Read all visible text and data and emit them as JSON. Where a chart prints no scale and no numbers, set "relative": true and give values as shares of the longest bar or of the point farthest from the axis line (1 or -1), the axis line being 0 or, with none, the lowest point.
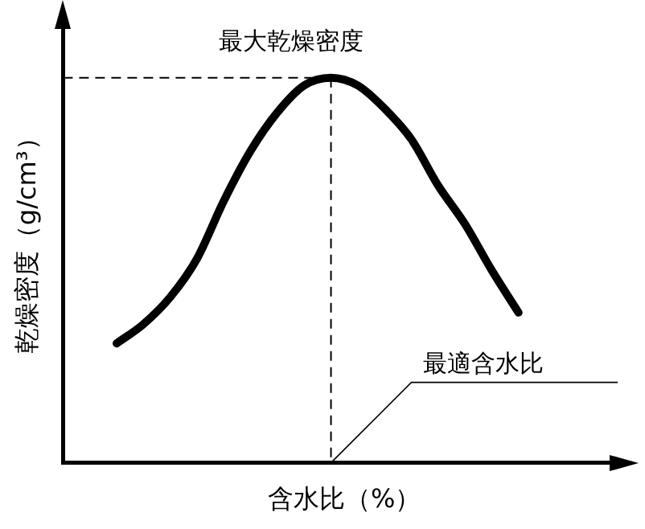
{
  "chart_data": {
    "type": "line",
    "relative": true,
    "xlabel": "含水比（%）",
    "ylabel": "乾燥密度（g/cm³）",
    "categories": [
      null,
      null,
      null,
      null,
      null,
      null,
      null,
      null,
      null,
      null,
      null,
      null,
      null,
      null,
      null,
      null,
      null,
      null,
      null,
      null,
      null,
      null
    ],
    "series": [
      {
        "color": "#000000",
        "values": [
          null,
          null,
          0.31,
          0.36,
          0.43,
          0.53,
          0.68,
          0.81,
          0.91,
          0.98,
          1,
          0.98,
          0.92,
          0.84,
          0.72,
          0.62,
          0.5,
          0.39,
          null,
          null,
          null,
          null
        ]
      }
    ],
    "ref_lines": [
      {
        "axis": "y",
        "value": 1,
        "line_style": "dashed",
        "color": "#000000"
      }
    ],
    "annotations": [
      {
        "text": "最大乾燥密度",
        "y": 1
      },
      "最適含水比"
    ],
    "grid": false,
    "legend": false,
    "marker": "none",
    "line_style": "solid"
  }
}
